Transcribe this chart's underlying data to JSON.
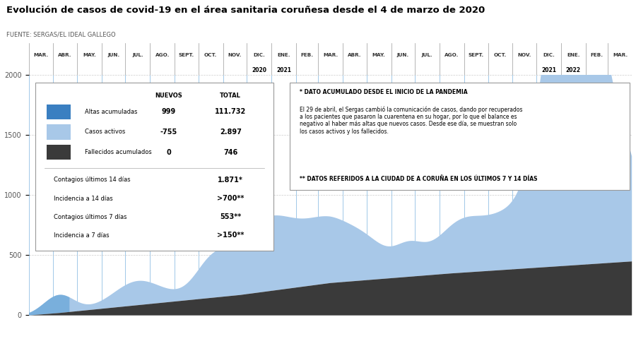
{
  "title": "Evolución de casos de covid-19 en el área sanitaria coruñesa desde el 4 de marzo de 2020",
  "source": "FUENTE: SERGAS/EL IDEAL GALLEGO",
  "bg_color": "#ffffff",
  "plot_bg_color": "#ffffff",
  "active_color": "#a8c8e8",
  "active_dark_color": "#5a9fd4",
  "deceased_color": "#3a3a3a",
  "grid_color": "#a0c8e8",
  "title_color": "#000000",
  "ylim": [
    0,
    2000
  ],
  "yticks": [
    0,
    500,
    1000,
    1500,
    2000
  ],
  "month_labels": [
    "MAR.",
    "ABR.",
    "MAY.",
    "JUN.",
    "JUL.",
    "AGO.",
    "SEPT.",
    "OCT.",
    "NOV.",
    "DIC.",
    "ENE.",
    "FEB.",
    "MAR.",
    "ABR.",
    "MAY.",
    "JUN.",
    "JUL.",
    "AGO.",
    "SEPT.",
    "OCT.",
    "NOV.",
    "DIC.",
    "ENE.",
    "FEB.",
    "MAR."
  ],
  "legend_data": {
    "nuevos_label": "NUEVOS",
    "total_label": "TOTAL",
    "altas_label": "Altas acumuladas",
    "altas_color": "#3a7fc1",
    "altas_nuevos": "999",
    "altas_total": "111.732",
    "activos_label": "Casos activos",
    "activos_color": "#a8c8e8",
    "activos_nuevos": "-755",
    "activos_total": "2.897",
    "fallecidos_label": "Fallecidos acumulados",
    "fallecidos_color": "#3a3a3a",
    "fallecidos_nuevos": "0",
    "fallecidos_total": "746",
    "contagios14_label": "Contagios últimos 14 días",
    "contagios14_val": "1.871*",
    "incidencia14_label": "Incidencia a 14 días",
    "incidencia14_val": ">700**",
    "contagios7_label": "Contagios últimos 7 días",
    "contagios7_val": "553**",
    "incidencia7_label": "Incidencia a 7 días",
    "incidencia7_val": ">150**"
  },
  "note_line1": "* DATO ACUMULADO DESDE EL INICIO DE LA PANDEMIA",
  "note_line2": "El 29 de abril, el Sergas cambió la comunicación de casos, dando por recuperados\na los pacientes que pasaron la cuarentena en su hogar, por lo que el balance es\nnegativo al haber más altas que nuevos casos. Desde ese día, se muestran solo\nlos casos activos y los fallecidos.",
  "note_line3": "** DATOS REFERIDOS A LA CIUDAD DE A CORUÑA EN LOS ÚLTIMOS 7 Y 14 DÍAS"
}
